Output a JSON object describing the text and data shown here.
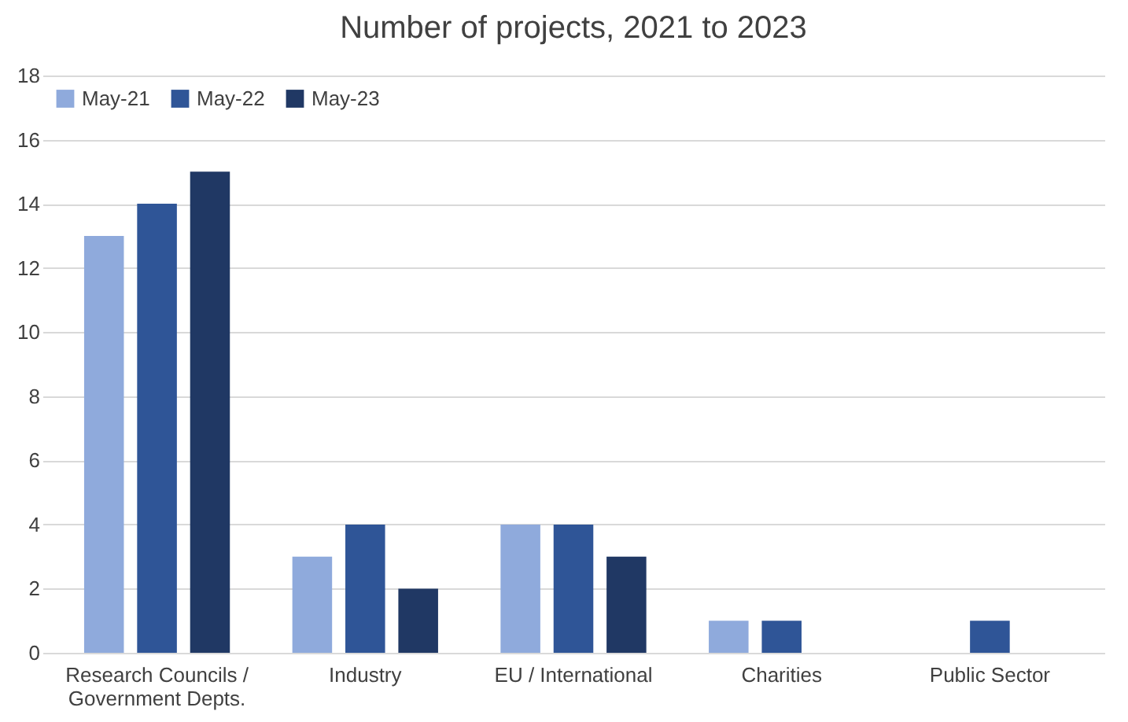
{
  "chart_data": {
    "type": "bar",
    "title": "Number of projects, 2021 to 2023",
    "categories": [
      "Research Councils / Government Depts.",
      "Industry",
      "EU / International",
      "Charities",
      "Public Sector"
    ],
    "series": [
      {
        "name": "May-21",
        "color": "#8faadc",
        "values": [
          13,
          3,
          4,
          1,
          0
        ]
      },
      {
        "name": "May-22",
        "color": "#2f5597",
        "values": [
          14,
          4,
          4,
          1,
          1
        ]
      },
      {
        "name": "May-23",
        "color": "#203864",
        "values": [
          15,
          2,
          3,
          0,
          0
        ]
      }
    ],
    "ylim": [
      0,
      18
    ],
    "yticks": [
      0,
      2,
      4,
      6,
      8,
      10,
      12,
      14,
      16,
      18
    ],
    "grid": "y",
    "legend": "top left"
  }
}
